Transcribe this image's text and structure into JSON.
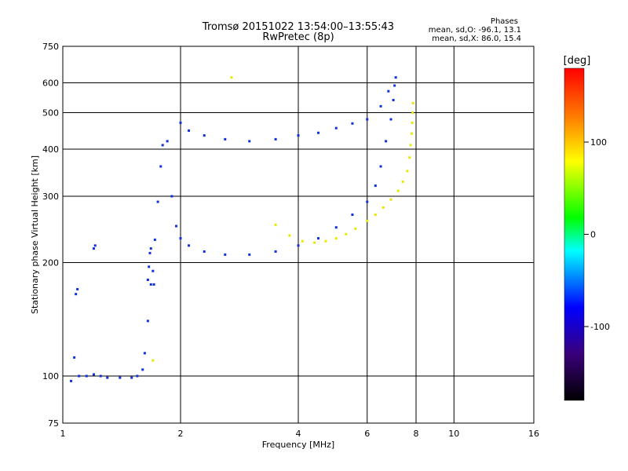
{
  "title_line1": "Tromsø 20151022 13:54:00–13:55:43",
  "title_line2": "RwPretec (8p)",
  "stats": {
    "heading": "Phases",
    "line1": "mean, sd,O: -96.1, 13.1",
    "line2": "mean, sd,X:  86.0, 15.4"
  },
  "chart_data": {
    "type": "scatter",
    "title": "",
    "xlabel": "Frequency [MHz]",
    "ylabel": "Stationary phase Virtual Height [km]",
    "x_scale": "log2",
    "y_scale": "log",
    "xlim": [
      1,
      16
    ],
    "ylim": [
      75,
      750
    ],
    "x_ticks": [
      1,
      2,
      4,
      6,
      8,
      10,
      16
    ],
    "x_tick_labels": [
      "1",
      "2",
      "4",
      "6",
      "8",
      "10",
      "16"
    ],
    "y_ticks": [
      75,
      100,
      200,
      300,
      400,
      500,
      600,
      750
    ],
    "y_tick_labels": [
      "75",
      "100",
      "200",
      "300",
      "400",
      "500",
      "600",
      "750"
    ],
    "grid": true,
    "colorbar": {
      "label": "[deg]",
      "range": [
        -180,
        180
      ],
      "ticks": [
        100,
        0,
        -100
      ],
      "tick_labels": [
        "100",
        "0",
        "-100"
      ],
      "colors": [
        "#000000",
        "#3a007a",
        "#0000ff",
        "#00ffff",
        "#00ff00",
        "#ffff00",
        "#ff8000",
        "#ff0000"
      ]
    },
    "series": [
      {
        "name": "O",
        "color": "#1030e0",
        "x": [
          1.05,
          1.1,
          1.15,
          1.2,
          1.25,
          1.3,
          1.4,
          1.5,
          1.55,
          1.6,
          1.62,
          1.65,
          1.68,
          1.72,
          1.75,
          1.78,
          1.8,
          1.85,
          1.9,
          1.95,
          2.0,
          2.1,
          2.3,
          2.6,
          3.0,
          3.5,
          4.0,
          4.5,
          5.0,
          5.5,
          6.0,
          6.3,
          6.5,
          6.7,
          6.9,
          7.0,
          7.05,
          7.1,
          2.0,
          2.1,
          2.3,
          2.6,
          3.0,
          3.5,
          4.0,
          4.5,
          5.0,
          5.5,
          6.0,
          6.5,
          6.8,
          1.07,
          1.08,
          1.09,
          1.2,
          1.21,
          1.65,
          1.66,
          1.67,
          1.68,
          1.7,
          1.71
        ],
        "y": [
          97,
          100,
          100,
          101,
          100,
          99,
          99,
          99,
          100,
          104,
          115,
          140,
          175,
          230,
          290,
          360,
          410,
          420,
          300,
          250,
          232,
          222,
          214,
          210,
          210,
          214,
          222,
          232,
          248,
          268,
          290,
          320,
          360,
          420,
          480,
          540,
          590,
          620,
          470,
          448,
          435,
          425,
          420,
          425,
          435,
          442,
          455,
          468,
          480,
          520,
          570,
          112,
          165,
          170,
          218,
          222,
          180,
          195,
          212,
          218,
          190,
          175
        ]
      },
      {
        "name": "X",
        "color": "#e8e800",
        "x": [
          3.5,
          3.8,
          4.1,
          4.4,
          4.7,
          5.0,
          5.3,
          5.6,
          6.0,
          6.3,
          6.6,
          6.9,
          7.2,
          7.4,
          7.6,
          7.7,
          7.75,
          7.8,
          7.82,
          7.84,
          7.86,
          2.7,
          1.7
        ],
        "y": [
          252,
          236,
          228,
          226,
          228,
          232,
          238,
          246,
          258,
          268,
          280,
          294,
          310,
          328,
          350,
          380,
          410,
          440,
          470,
          500,
          530,
          620,
          110
        ]
      }
    ]
  }
}
